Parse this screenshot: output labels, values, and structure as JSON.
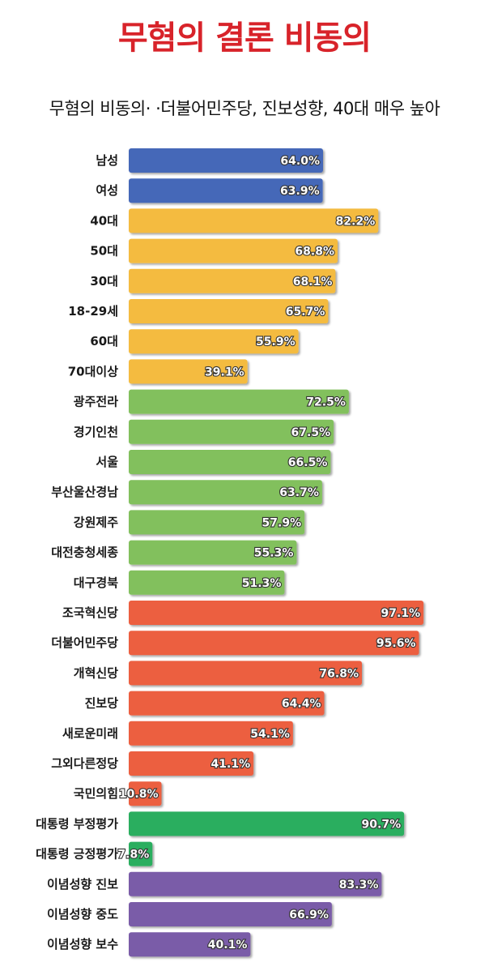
{
  "header": {
    "title": "무혐의 결론 비동의",
    "subtitle": "무혐의 비동의· ·더불어민주당,  진보성향,  40대 매우 높아"
  },
  "colors": {
    "title": "#d8232a",
    "gender": "#4468b8",
    "age": "#f4bb3f",
    "region": "#82c05d",
    "party": "#ec5f41",
    "approval": "#2aae5f",
    "ideology": "#7a5ba8"
  },
  "chart_data": {
    "type": "bar",
    "orientation": "horizontal",
    "title": "무혐의 결론 비동의",
    "subtitle": "무혐의 비동의· ·더불어민주당,  진보성향,  40대 매우 높아",
    "xlim": [
      0,
      100
    ],
    "grid": false,
    "legend": "none",
    "categories": [
      "남성",
      "여성",
      "40대",
      "50대",
      "30대",
      "18-29세",
      "60대",
      "70대이상",
      "광주전라",
      "경기인천",
      "서울",
      "부산울산경남",
      "강원제주",
      "대전충청세종",
      "대구경북",
      "조국혁신당",
      "더불어민주당",
      "개혁신당",
      "진보당",
      "새로운미래",
      "그외다른정당",
      "국민의힘",
      "대통령 부정평가",
      "대통령 긍정평가",
      "이념성향 진보",
      "이념성향 중도",
      "이념성향 보수"
    ],
    "values": [
      64.0,
      63.9,
      82.2,
      68.8,
      68.1,
      65.7,
      55.9,
      39.1,
      72.5,
      67.5,
      66.5,
      63.7,
      57.9,
      55.3,
      51.3,
      97.1,
      95.6,
      76.8,
      64.4,
      54.1,
      41.1,
      10.8,
      90.7,
      7.8,
      83.3,
      66.9,
      40.1
    ],
    "value_labels": [
      "64.0%",
      "63.9%",
      "82.2%",
      "68.8%",
      "68.1%",
      "65.7%",
      "55.9%",
      "39.1%",
      "72.5%",
      "67.5%",
      "66.5%",
      "63.7%",
      "57.9%",
      "55.3%",
      "51.3%",
      "97.1%",
      "95.6%",
      "76.8%",
      "64.4%",
      "54.1%",
      "41.1%",
      "10.8%",
      "90.7%",
      "7.8%",
      "83.3%",
      "66.9%",
      "40.1%"
    ],
    "groups": [
      "gender",
      "gender",
      "age",
      "age",
      "age",
      "age",
      "age",
      "age",
      "region",
      "region",
      "region",
      "region",
      "region",
      "region",
      "region",
      "party",
      "party",
      "party",
      "party",
      "party",
      "party",
      "party",
      "approval",
      "approval",
      "ideology",
      "ideology",
      "ideology"
    ]
  }
}
